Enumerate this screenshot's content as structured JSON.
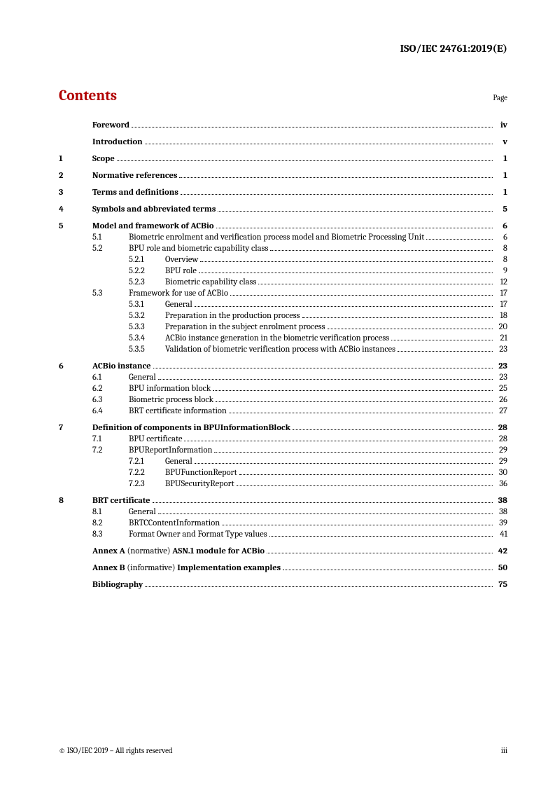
{
  "docId": "ISO/IEC 24761:2019(E)",
  "contentsTitle": "Contents",
  "pageLabel": "Page",
  "footerLeft": "© ISO/IEC 2019 – All rights reserved",
  "footerRight": "iii",
  "entries": [
    {
      "level": 0,
      "num": "",
      "title": "Foreword",
      "page": "iv",
      "bold": true,
      "gapBefore": false
    },
    {
      "level": 0,
      "num": "",
      "title": "Introduction",
      "page": "v",
      "bold": true,
      "gapBefore": true
    },
    {
      "level": 0,
      "num": "1",
      "title": "Scope",
      "page": "1",
      "bold": true,
      "gapBefore": true
    },
    {
      "level": 0,
      "num": "2",
      "title": "Normative references",
      "page": "1",
      "bold": true,
      "gapBefore": true
    },
    {
      "level": 0,
      "num": "3",
      "title": "Terms and definitions",
      "page": "1",
      "bold": true,
      "gapBefore": true
    },
    {
      "level": 0,
      "num": "4",
      "title": "Symbols and abbreviated terms",
      "page": "5",
      "bold": true,
      "gapBefore": true
    },
    {
      "level": 0,
      "num": "5",
      "title": "Model and framework of ACBio",
      "page": "6",
      "bold": true,
      "gapBefore": true
    },
    {
      "level": 1,
      "num": "5.1",
      "title": "Biometric enrolment and verification process model and Biometric Processing Unit",
      "page": "6",
      "bold": false,
      "gapBefore": false
    },
    {
      "level": 1,
      "num": "5.2",
      "title": "BPU role and biometric capability class",
      "page": "8",
      "bold": false,
      "gapBefore": false
    },
    {
      "level": 2,
      "num": "5.2.1",
      "title": "Overview",
      "page": "8",
      "bold": false,
      "gapBefore": false
    },
    {
      "level": 2,
      "num": "5.2.2",
      "title": "BPU role",
      "page": "9",
      "bold": false,
      "gapBefore": false
    },
    {
      "level": 2,
      "num": "5.2.3",
      "title": "Biometric capability class",
      "page": "12",
      "bold": false,
      "gapBefore": false
    },
    {
      "level": 1,
      "num": "5.3",
      "title": "Framework for use of ACBio",
      "page": "17",
      "bold": false,
      "gapBefore": false
    },
    {
      "level": 2,
      "num": "5.3.1",
      "title": "General",
      "page": "17",
      "bold": false,
      "gapBefore": false
    },
    {
      "level": 2,
      "num": "5.3.2",
      "title": "Preparation in the production process",
      "page": "18",
      "bold": false,
      "gapBefore": false
    },
    {
      "level": 2,
      "num": "5.3.3",
      "title": "Preparation in the subject enrolment process",
      "page": "20",
      "bold": false,
      "gapBefore": false
    },
    {
      "level": 2,
      "num": "5.3.4",
      "title": "ACBio instance generation in the biometric verification process",
      "page": "21",
      "bold": false,
      "gapBefore": false
    },
    {
      "level": 2,
      "num": "5.3.5",
      "title": "Validation of biometric verification process with ACBio instances",
      "page": "23",
      "bold": false,
      "gapBefore": false
    },
    {
      "level": 0,
      "num": "6",
      "title": "ACBio instance",
      "page": "23",
      "bold": true,
      "gapBefore": true
    },
    {
      "level": 1,
      "num": "6.1",
      "title": "General",
      "page": "23",
      "bold": false,
      "gapBefore": false
    },
    {
      "level": 1,
      "num": "6.2",
      "title": "BPU information block",
      "page": "25",
      "bold": false,
      "gapBefore": false
    },
    {
      "level": 1,
      "num": "6.3",
      "title": "Biometric process block",
      "page": "26",
      "bold": false,
      "gapBefore": false
    },
    {
      "level": 1,
      "num": "6.4",
      "title": "BRT certificate information",
      "page": "27",
      "bold": false,
      "gapBefore": false
    },
    {
      "level": 0,
      "num": "7",
      "title": "Definition of components in BPUInformationBlock",
      "page": "28",
      "bold": true,
      "gapBefore": true
    },
    {
      "level": 1,
      "num": "7.1",
      "title": "BPU certificate",
      "page": "28",
      "bold": false,
      "gapBefore": false
    },
    {
      "level": 1,
      "num": "7.2",
      "title": "BPUReportInformation",
      "page": "29",
      "bold": false,
      "gapBefore": false
    },
    {
      "level": 2,
      "num": "7.2.1",
      "title": "General",
      "page": "29",
      "bold": false,
      "gapBefore": false
    },
    {
      "level": 2,
      "num": "7.2.2",
      "title": "BPUFunctionReport",
      "page": "30",
      "bold": false,
      "gapBefore": false
    },
    {
      "level": 2,
      "num": "7.2.3",
      "title": "BPUSecurityReport",
      "page": "36",
      "bold": false,
      "gapBefore": false
    },
    {
      "level": 0,
      "num": "8",
      "title": "BRT certificate",
      "page": "38",
      "bold": true,
      "gapBefore": true
    },
    {
      "level": 1,
      "num": "8.1",
      "title": "General",
      "page": "38",
      "bold": false,
      "gapBefore": false
    },
    {
      "level": 1,
      "num": "8.2",
      "title": "BRTCContentInformation",
      "page": "39",
      "bold": false,
      "gapBefore": false
    },
    {
      "level": 1,
      "num": "8.3",
      "title": "Format Owner and Format Type values",
      "page": "41",
      "bold": false,
      "gapBefore": false
    },
    {
      "level": 0,
      "num": "",
      "titleHtml": "<b>Annex A</b> (normative) <b>ASN.1 module for ACBio</b>",
      "page": "42",
      "bold": false,
      "gapBefore": true,
      "pageBold": true
    },
    {
      "level": 0,
      "num": "",
      "titleHtml": "<b>Annex B</b> (informative) <b>Implementation examples</b>",
      "page": "50",
      "bold": false,
      "gapBefore": true,
      "pageBold": true
    },
    {
      "level": 0,
      "num": "",
      "title": "Bibliography",
      "page": "75",
      "bold": true,
      "gapBefore": true
    }
  ]
}
